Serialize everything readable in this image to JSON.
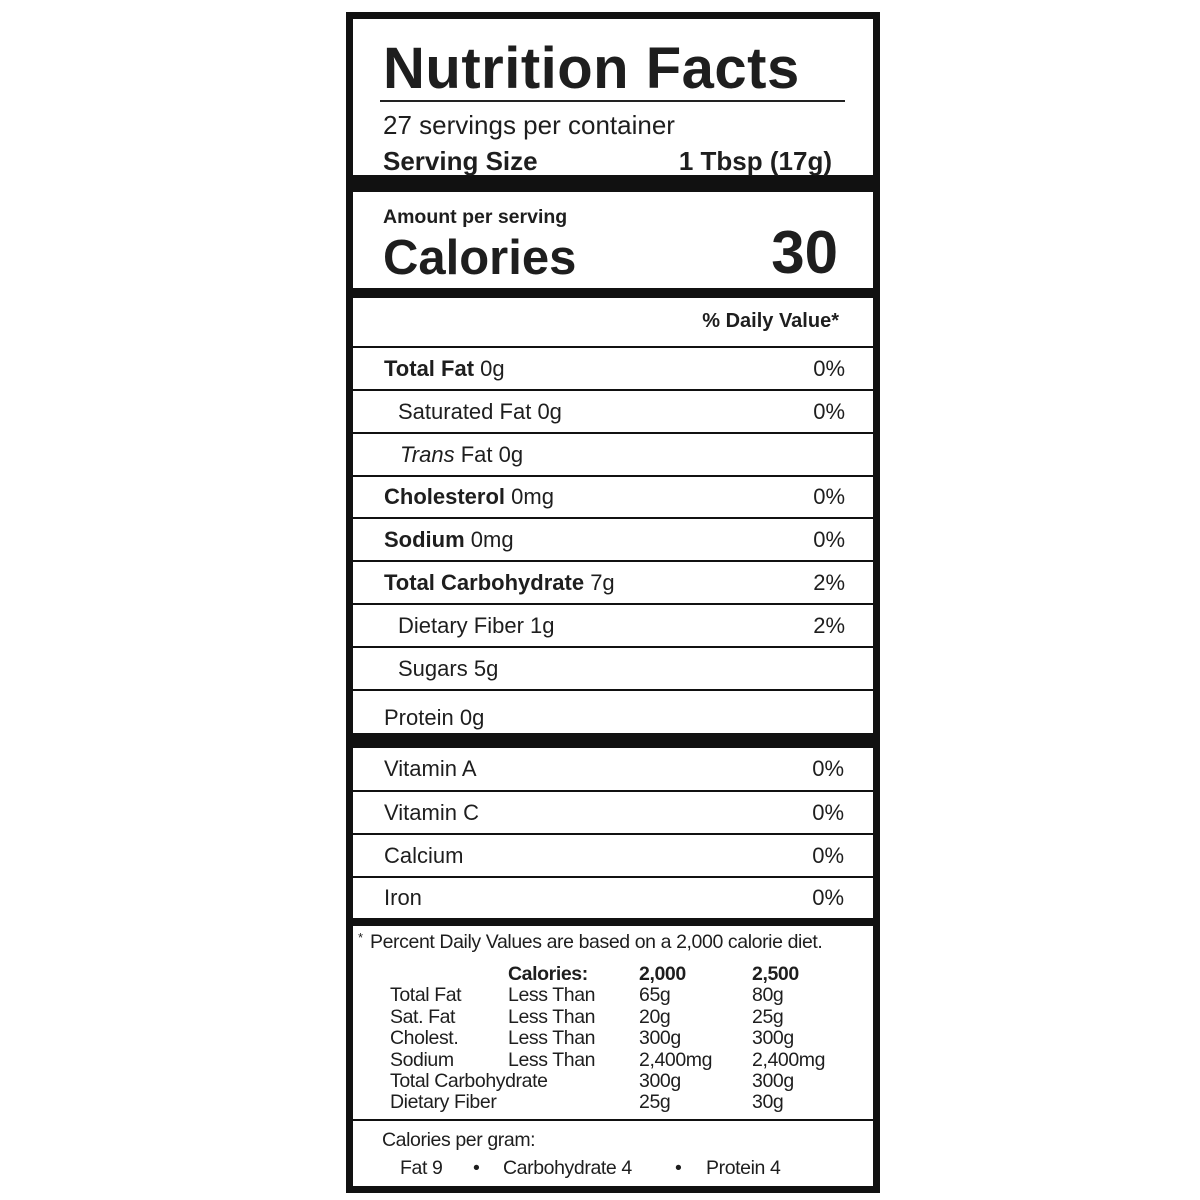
{
  "title": "Nutrition Facts",
  "servings_per_container": "27 servings per container",
  "serving_size": {
    "label": "Serving Size",
    "value": "1 Tbsp (17g)"
  },
  "amount_per_serving": "Amount per serving",
  "calories": {
    "label": "Calories",
    "value": "30"
  },
  "daily_value_header": "% Daily Value*",
  "nutrients": [
    {
      "name": "Total Fat",
      "amount": "0g",
      "dv": "0%"
    },
    {
      "name": "Saturated Fat",
      "amount": "0g",
      "dv": "0%"
    },
    {
      "name": "Trans",
      "name_rest": "Fat",
      "amount": "0g",
      "dv": ""
    },
    {
      "name": "Cholesterol",
      "amount": "0mg",
      "dv": "0%"
    },
    {
      "name": "Sodium",
      "amount": "0mg",
      "dv": "0%"
    },
    {
      "name": "Total Carbohydrate",
      "amount": "7g",
      "dv": "2%"
    },
    {
      "name": "Dietary Fiber",
      "amount": "1g",
      "dv": "2%"
    },
    {
      "name": "Sugars",
      "amount": "5g",
      "dv": ""
    },
    {
      "name": "Protein",
      "amount": "0g",
      "dv": ""
    }
  ],
  "vitamins": [
    {
      "name": "Vitamin A",
      "dv": "0%"
    },
    {
      "name": "Vitamin C",
      "dv": "0%"
    },
    {
      "name": "Calcium",
      "dv": "0%"
    },
    {
      "name": "Iron",
      "dv": "0%"
    }
  ],
  "footnote": {
    "asterisk": "*",
    "text": "Percent Daily Values are based on a 2,000 calorie diet.",
    "header": [
      "",
      "Calories:",
      "2,000",
      "2,500"
    ],
    "rows": [
      [
        "Total Fat",
        "Less Than",
        "65g",
        "80g"
      ],
      [
        "Sat. Fat",
        "Less Than",
        "20g",
        "25g"
      ],
      [
        "Cholest.",
        "Less Than",
        "300g",
        "300g"
      ],
      [
        "Sodium",
        "Less Than",
        "2,400mg",
        "2,400mg"
      ],
      [
        "Total Carbohydrate",
        "",
        "300g",
        "300g"
      ],
      [
        "Dietary Fiber",
        "",
        "25g",
        "30g"
      ]
    ]
  },
  "calories_per_gram": {
    "label": "Calories per gram:",
    "items": [
      "Fat 9",
      "Carbohydrate 4",
      "Protein 4"
    ],
    "separator": "•"
  }
}
